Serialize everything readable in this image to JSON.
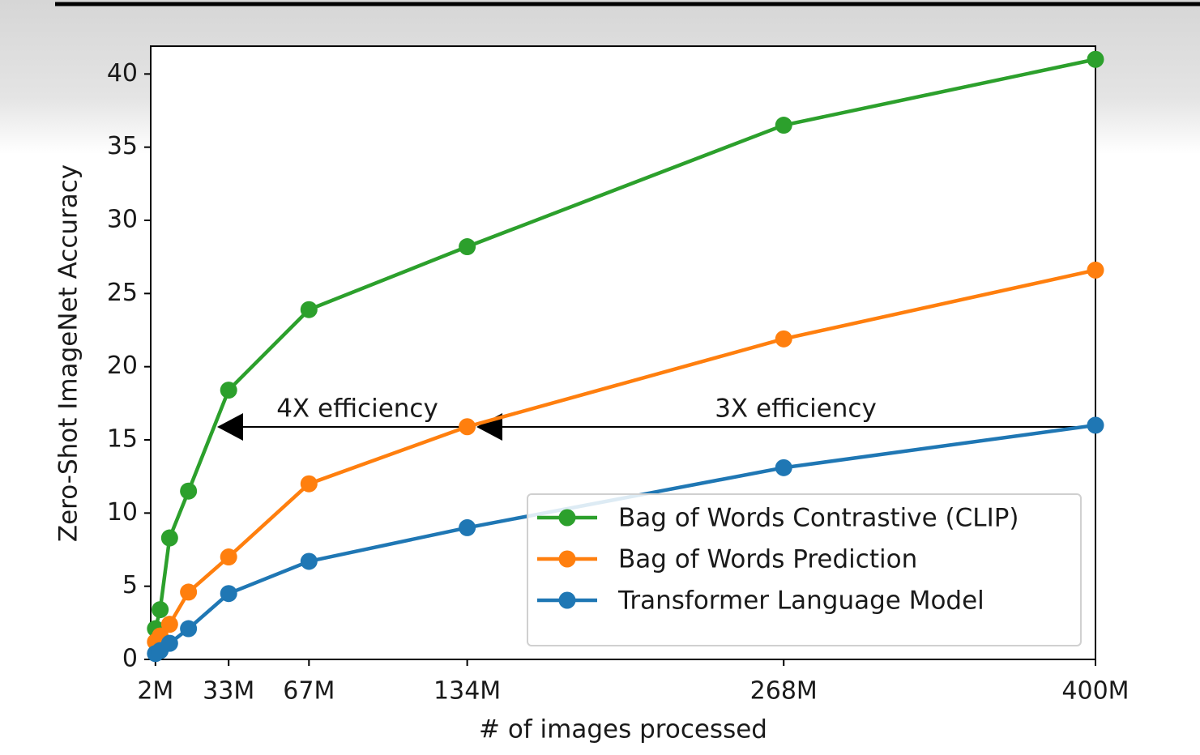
{
  "chart_data": {
    "type": "line",
    "xlabel": "# of images processed",
    "ylabel": "Zero-Shot ImageNet Accuracy",
    "x": [
      2,
      4,
      8,
      16,
      33,
      67,
      134,
      268,
      400
    ],
    "series": [
      {
        "name": "Bag of Words Contrastive (CLIP)",
        "color": "#2ca02c",
        "values": [
          2.1,
          3.4,
          8.3,
          11.5,
          18.4,
          23.9,
          28.2,
          36.5,
          41.0
        ]
      },
      {
        "name": "Bag of Words Prediction",
        "color": "#ff7f0e",
        "values": [
          1.2,
          1.6,
          2.4,
          4.6,
          7.0,
          12.0,
          15.9,
          21.9,
          26.6
        ]
      },
      {
        "name": "Transformer Language Model",
        "color": "#1f77b4",
        "values": [
          0.4,
          0.6,
          1.1,
          2.1,
          4.5,
          6.7,
          9.0,
          13.1,
          16.0
        ]
      }
    ],
    "xlim": [
      0,
      400
    ],
    "ylim": [
      0,
      41.9
    ],
    "xticks": [
      {
        "value": 2,
        "label": "2M"
      },
      {
        "value": 33,
        "label": "33M"
      },
      {
        "value": 67,
        "label": "67M"
      },
      {
        "value": 134,
        "label": "134M"
      },
      {
        "value": 268,
        "label": "268M"
      },
      {
        "value": 400,
        "label": "400M"
      }
    ],
    "yticks": [
      0,
      5,
      10,
      15,
      20,
      25,
      30,
      35,
      40
    ],
    "grid": false,
    "legend": "lower right",
    "annotations": [
      {
        "text": "4X efficiency"
      },
      {
        "text": "3X efficiency"
      }
    ]
  }
}
